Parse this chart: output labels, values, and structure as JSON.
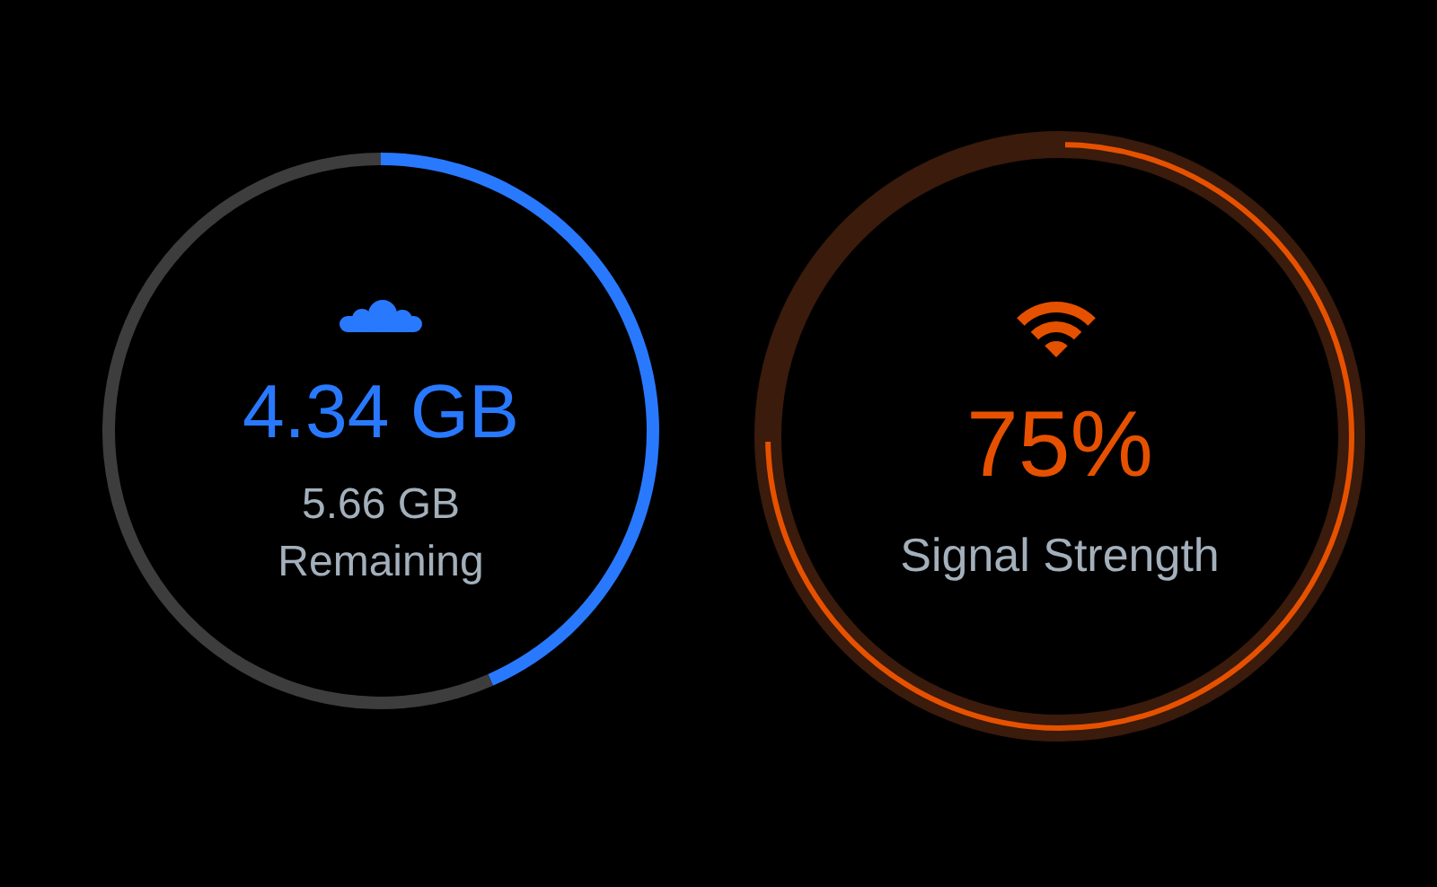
{
  "chart_data": [
    {
      "type": "donut",
      "categories": [
        null,
        "Remaining"
      ],
      "values": [
        4.34,
        5.66
      ],
      "colors": [
        "#2979ff",
        "#3d3d3d"
      ],
      "value_labels": [
        "4.34 GB",
        "5.66 GB"
      ]
    },
    {
      "type": "donut",
      "categories": [
        "Signal Strength",
        null
      ],
      "values": [
        75,
        25
      ],
      "colors": [
        "#e65100",
        "#3a1b0c"
      ],
      "value_labels": [
        "75%",
        null
      ]
    }
  ]
}
